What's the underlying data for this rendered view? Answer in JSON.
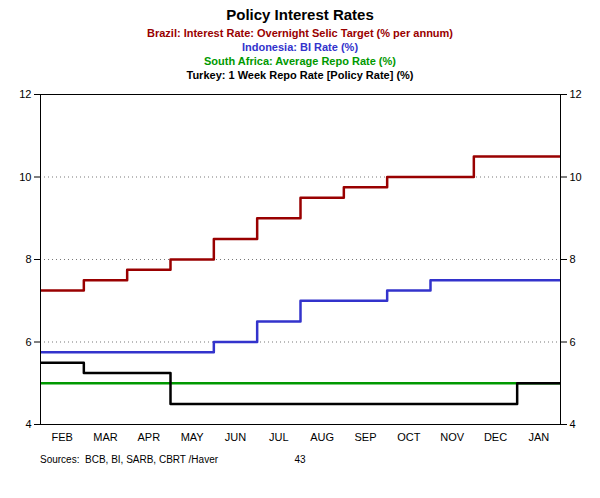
{
  "chart_data": {
    "type": "line",
    "title": "Policy Interest Rates",
    "categories": [
      "FEB",
      "MAR",
      "APR",
      "MAY",
      "JUN",
      "JUL",
      "AUG",
      "SEP",
      "OCT",
      "NOV",
      "DEC",
      "JAN"
    ],
    "series": [
      {
        "name": "Brazil: Interest Rate: Overnight Selic Target (% per annum)",
        "color": "#990000",
        "values": [
          7.25,
          7.5,
          7.75,
          8.0,
          8.5,
          9.0,
          9.5,
          9.75,
          10.0,
          10.0,
          10.5,
          10.5
        ]
      },
      {
        "name": "Indonesia: BI Rate (%)",
        "color": "#3333cc",
        "values": [
          5.75,
          5.75,
          5.75,
          5.75,
          6.0,
          6.5,
          7.0,
          7.0,
          7.25,
          7.5,
          7.5,
          7.5
        ]
      },
      {
        "name": "South Africa: Average Repo Rate (%)",
        "color": "#009900",
        "values": [
          5.0,
          5.0,
          5.0,
          5.0,
          5.0,
          5.0,
          5.0,
          5.0,
          5.0,
          5.0,
          5.0,
          5.0
        ]
      },
      {
        "name": "Turkey: 1 Week Repo Rate [Policy Rate] (%)",
        "color": "#000000",
        "values": [
          5.5,
          5.25,
          5.25,
          4.5,
          4.5,
          4.5,
          4.5,
          4.5,
          4.5,
          4.5,
          4.5,
          5.0
        ]
      }
    ],
    "ylim": [
      4,
      12
    ],
    "yticks": [
      4,
      6,
      8,
      10,
      12
    ],
    "grid": true,
    "legend": "top",
    "annotations": [
      "Sources:  BCB, BI, SARB, CBRT /Haver",
      "43"
    ]
  }
}
